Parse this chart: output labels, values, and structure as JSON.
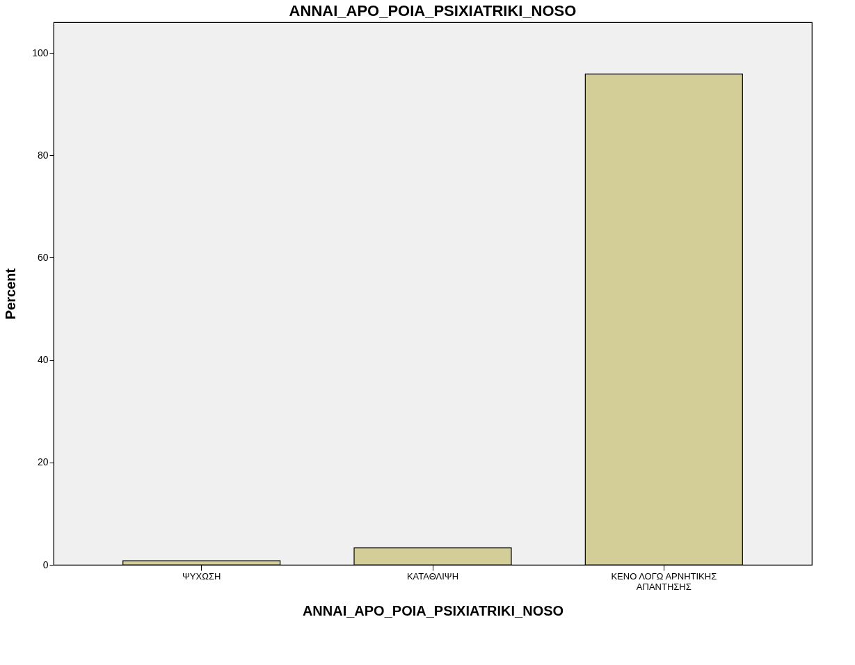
{
  "chart_data": {
    "type": "bar",
    "title": "ANNAI_APO_POIA_PSIXIATRIKI_NOSO",
    "xlabel": "ANNAI_APO_POIA_PSIXIATRIKI_NOSO",
    "ylabel": "Percent",
    "categories": [
      "ΨΥΧΩΣΗ",
      "ΚΑΤΑΘΛΙΨΗ",
      "ΚΕΝΟ ΛΟΓΩ ΑΡΝΗΤΙΚΗΣ\nΑΠΑΝΤΗΣΗΣ"
    ],
    "values": [
      0.8,
      3.3,
      95.9
    ],
    "color": "#d3cd98",
    "ylim": [
      0,
      106
    ],
    "yticks": [
      0,
      20,
      40,
      60,
      80,
      100
    ],
    "grid": false
  }
}
